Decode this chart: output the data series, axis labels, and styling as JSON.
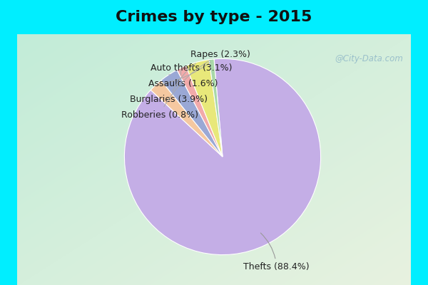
{
  "title": "Crimes by type - 2015",
  "slices": [
    {
      "label": "Thefts (88.4%)",
      "value": 88.4,
      "color": "#C4AEE6"
    },
    {
      "label": "Rapes (2.3%)",
      "value": 2.3,
      "color": "#F5C8A0"
    },
    {
      "label": "Auto thefts (3.1%)",
      "value": 3.1,
      "color": "#9AA8D5"
    },
    {
      "label": "Assaults (1.6%)",
      "value": 1.6,
      "color": "#F2AAAA"
    },
    {
      "label": "Burglaries (3.9%)",
      "value": 3.9,
      "color": "#E8E87A"
    },
    {
      "label": "Robberies (0.8%)",
      "value": 0.8,
      "color": "#A8D8A8"
    }
  ],
  "title_fontsize": 16,
  "title_color": "#111111",
  "bg_top_color": "#00EEFF",
  "bg_left_strip": "#00EEFF",
  "bg_right_strip": "#00EEFF",
  "watermark": "@City-Data.com",
  "startangle": 90,
  "label_fontsize": 9
}
